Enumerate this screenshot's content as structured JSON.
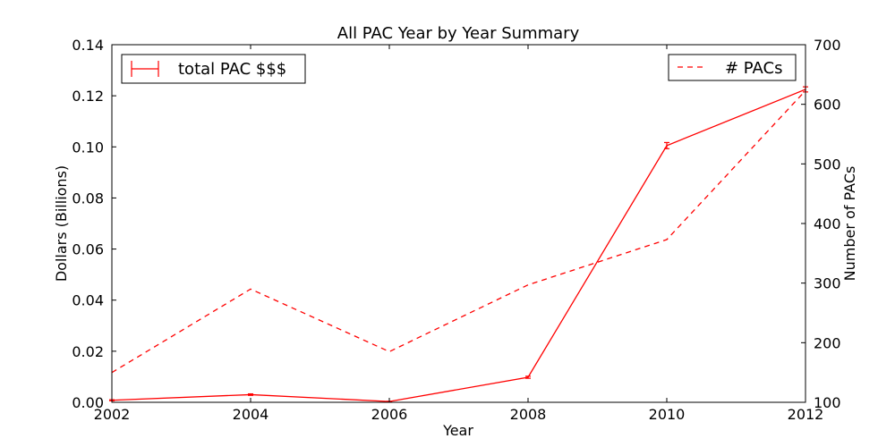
{
  "chart_data": {
    "type": "line",
    "title": "All PAC Year by Year Summary",
    "xlabel": "Year",
    "ylabel_left": "Dollars (Billions)",
    "ylabel_right": "Number of PACs",
    "x": [
      2002,
      2004,
      2006,
      2008,
      2010,
      2012
    ],
    "xlim": [
      2002,
      2012
    ],
    "ylim_left": [
      0,
      0.14
    ],
    "ylim_right": [
      100,
      700
    ],
    "x_ticks": [
      "2002",
      "2004",
      "2006",
      "2008",
      "2010",
      "2012"
    ],
    "y_ticks_left": [
      "0.00",
      "0.02",
      "0.04",
      "0.06",
      "0.08",
      "0.10",
      "0.12",
      "0.14"
    ],
    "y_ticks_right": [
      "100",
      "200",
      "300",
      "400",
      "500",
      "600",
      "700"
    ],
    "grid": false,
    "series": [
      {
        "name": "total PAC $$$",
        "axis": "left",
        "style": "solid",
        "error_bars": true,
        "color": "#ff0000",
        "values": [
          0.0008,
          0.003,
          0.0003,
          0.0098,
          0.1005,
          0.1225
        ],
        "errors": [
          0.0002,
          0.0003,
          0.0001,
          0.0004,
          0.0012,
          0.001
        ],
        "legend_position": "top-left"
      },
      {
        "name": "# PACs",
        "axis": "right",
        "style": "dashed",
        "color": "#ff0000",
        "values": [
          150,
          290,
          185,
          297,
          373,
          623
        ],
        "legend_position": "top-right"
      }
    ]
  }
}
